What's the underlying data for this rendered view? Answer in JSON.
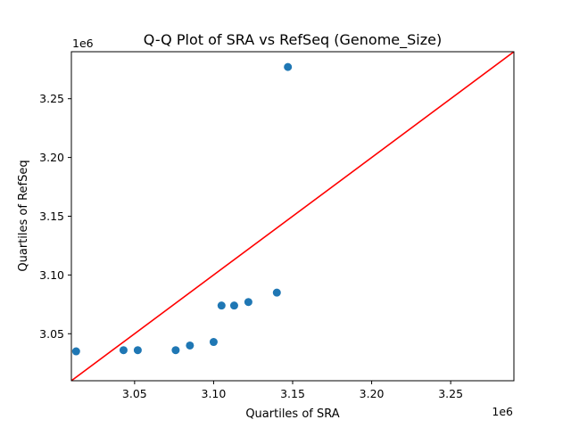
{
  "chart_data": {
    "type": "scatter",
    "title": "Q-Q Plot of SRA vs RefSeq (Genome_Size)",
    "xlabel": "Quartiles of SRA",
    "ylabel": "Quartiles of RefSeq",
    "x_offset_label": "1e6",
    "y_offset_label": "1e6",
    "xlim": [
      3.01,
      3.29
    ],
    "ylim": [
      3.01,
      3.29
    ],
    "x_ticks": [
      3.05,
      3.1,
      3.15,
      3.2,
      3.25
    ],
    "y_ticks": [
      3.05,
      3.1,
      3.15,
      3.2,
      3.25
    ],
    "x_tick_labels": [
      "3.05",
      "3.10",
      "3.15",
      "3.20",
      "3.25"
    ],
    "y_tick_labels": [
      "3.05",
      "3.10",
      "3.15",
      "3.20",
      "3.25"
    ],
    "grid": false,
    "points": [
      {
        "x": 3.013,
        "y": 3.035
      },
      {
        "x": 3.043,
        "y": 3.036
      },
      {
        "x": 3.052,
        "y": 3.036
      },
      {
        "x": 3.076,
        "y": 3.036
      },
      {
        "x": 3.085,
        "y": 3.04
      },
      {
        "x": 3.1,
        "y": 3.043
      },
      {
        "x": 3.105,
        "y": 3.074
      },
      {
        "x": 3.113,
        "y": 3.074
      },
      {
        "x": 3.122,
        "y": 3.077
      },
      {
        "x": 3.14,
        "y": 3.085
      },
      {
        "x": 3.147,
        "y": 3.277
      }
    ],
    "reference_line": {
      "from": [
        3.01,
        3.01
      ],
      "to": [
        3.29,
        3.29
      ]
    },
    "colors": {
      "points": "#1f77b4",
      "reference_line": "#ff0000"
    }
  }
}
